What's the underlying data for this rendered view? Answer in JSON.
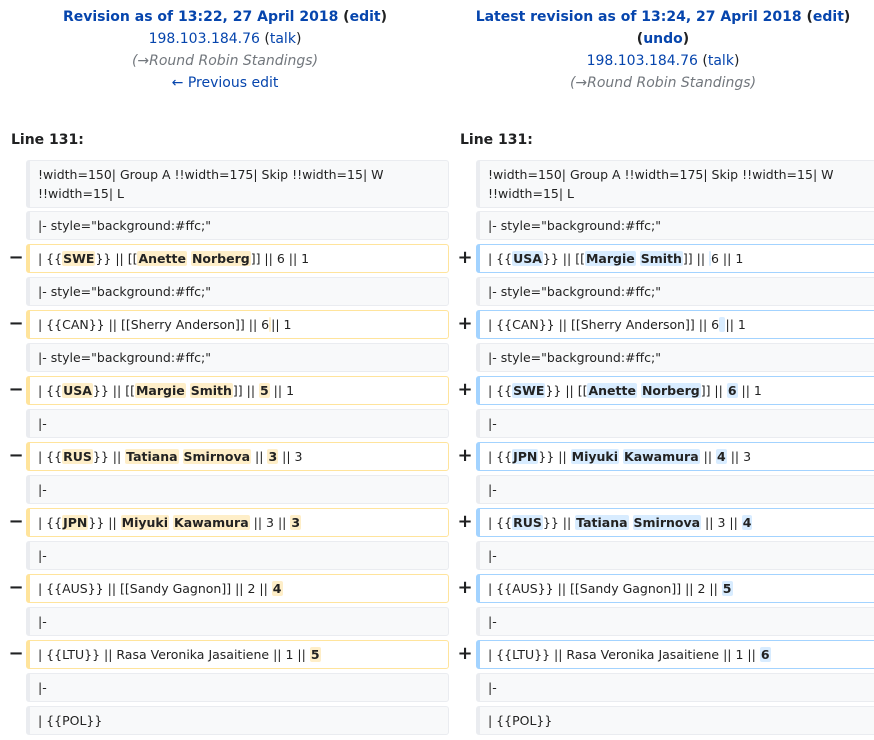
{
  "left_header": {
    "title": "Revision as of 13:22, 27 April 2018",
    "edit": "edit",
    "user": "198.103.184.76",
    "talk": "talk",
    "arrow": "→",
    "summary": "Round Robin Standings",
    "prev": "← Previous edit"
  },
  "right_header": {
    "title": "Latest revision as of 13:24, 27 April 2018",
    "edit": "edit",
    "undo": "undo",
    "user": "198.103.184.76",
    "talk": "talk",
    "arrow": "→",
    "summary": "Round Robin Standings"
  },
  "line_left": "Line 131:",
  "line_right": "Line 131:",
  "markers": {
    "minus": "−",
    "plus": "+"
  },
  "rows": [
    {
      "type": "context",
      "left": "!width=150| Group A !!width=175| Skip !!width=15| W !!width=15| L",
      "right": "!width=150| Group A !!width=175| Skip !!width=15| W !!width=15| L"
    },
    {
      "type": "context",
      "left": "|- style=\"background:#ffc;\"",
      "right": "|- style=\"background:#ffc;\""
    },
    {
      "type": "change",
      "left": [
        [
          "| {{",
          ""
        ],
        [
          "SWE",
          "b"
        ],
        [
          "}} || [[",
          ""
        ],
        [
          "Anette",
          "b"
        ],
        [
          " ",
          ""
        ],
        [
          "Norberg",
          "b"
        ],
        [
          "]] || 6 || 1",
          ""
        ]
      ],
      "right": [
        [
          "| {{",
          ""
        ],
        [
          "USA",
          "b"
        ],
        [
          "}} || [[",
          ""
        ],
        [
          "Margie",
          "b"
        ],
        [
          " ",
          ""
        ],
        [
          "Smith",
          "b"
        ],
        [
          "]] || ",
          ""
        ],
        [
          " ",
          "b"
        ],
        [
          "6 || 1",
          ""
        ]
      ]
    },
    {
      "type": "context",
      "left": "|- style=\"background:#ffc;\"",
      "right": "|- style=\"background:#ffc;\""
    },
    {
      "type": "change",
      "left": [
        [
          "| {{CAN}} || [[Sherry Anderson]] || 6",
          ""
        ],
        [
          "",
          "b"
        ],
        [
          "|| 1",
          ""
        ]
      ],
      "right": [
        [
          "| {{CAN}} || [[Sherry Anderson]] || 6",
          ""
        ],
        [
          " ",
          "b"
        ],
        [
          "|| 1",
          ""
        ]
      ]
    },
    {
      "type": "context",
      "left": "|- style=\"background:#ffc;\"",
      "right": "|- style=\"background:#ffc;\""
    },
    {
      "type": "change",
      "left": [
        [
          "| {{",
          ""
        ],
        [
          "USA",
          "b"
        ],
        [
          "}} || [[",
          ""
        ],
        [
          "Margie",
          "b"
        ],
        [
          " ",
          ""
        ],
        [
          "Smith",
          "b"
        ],
        [
          "]] || ",
          ""
        ],
        [
          " 5",
          "b"
        ],
        [
          " || 1",
          ""
        ]
      ],
      "right": [
        [
          "| {{",
          ""
        ],
        [
          "SWE",
          "b"
        ],
        [
          "}} || [[",
          ""
        ],
        [
          "Anette",
          "b"
        ],
        [
          " ",
          ""
        ],
        [
          "Norberg",
          "b"
        ],
        [
          "]] || ",
          ""
        ],
        [
          "6",
          "b"
        ],
        [
          " || 1",
          ""
        ]
      ]
    },
    {
      "type": "context",
      "left": "|-",
      "right": "|-"
    },
    {
      "type": "change",
      "left": [
        [
          "| {{",
          ""
        ],
        [
          "RUS",
          "b"
        ],
        [
          "}} || ",
          ""
        ],
        [
          "Tatiana",
          "b"
        ],
        [
          " ",
          ""
        ],
        [
          "Smirnova",
          "b"
        ],
        [
          " || ",
          ""
        ],
        [
          "3",
          "b"
        ],
        [
          " || 3",
          ""
        ]
      ],
      "right": [
        [
          "| {{",
          ""
        ],
        [
          "JPN",
          "b"
        ],
        [
          "}} || ",
          ""
        ],
        [
          "Miyuki",
          "b"
        ],
        [
          " ",
          ""
        ],
        [
          "Kawamura",
          "b"
        ],
        [
          " || ",
          ""
        ],
        [
          "4",
          "b"
        ],
        [
          " || 3",
          ""
        ]
      ]
    },
    {
      "type": "context",
      "left": "|-",
      "right": "|-"
    },
    {
      "type": "change",
      "left": [
        [
          "| {{",
          ""
        ],
        [
          "JPN",
          "b"
        ],
        [
          "}} || ",
          ""
        ],
        [
          "Miyuki",
          "b"
        ],
        [
          " ",
          ""
        ],
        [
          "Kawamura",
          "b"
        ],
        [
          " || 3 || ",
          ""
        ],
        [
          "3",
          "b"
        ]
      ],
      "right": [
        [
          "| {{",
          ""
        ],
        [
          "RUS",
          "b"
        ],
        [
          "}} || ",
          ""
        ],
        [
          "Tatiana",
          "b"
        ],
        [
          " ",
          ""
        ],
        [
          "Smirnova",
          "b"
        ],
        [
          " || 3 || ",
          ""
        ],
        [
          "4",
          "b"
        ]
      ]
    },
    {
      "type": "context",
      "left": "|-",
      "right": "|-"
    },
    {
      "type": "change",
      "left": [
        [
          "| {{AUS}} || [[Sandy Gagnon]] || 2 || ",
          ""
        ],
        [
          "4",
          "b"
        ]
      ],
      "right": [
        [
          "| {{AUS}} || [[Sandy Gagnon]] || 2 || ",
          ""
        ],
        [
          "5",
          "b"
        ]
      ]
    },
    {
      "type": "context",
      "left": "|-",
      "right": "|-"
    },
    {
      "type": "change",
      "left": [
        [
          "| {{LTU}} || Rasa Veronika Jasaitiene || 1 || ",
          ""
        ],
        [
          "5",
          "b"
        ]
      ],
      "right": [
        [
          "| {{LTU}} || Rasa Veronika Jasaitiene || 1 || ",
          ""
        ],
        [
          "6",
          "b"
        ]
      ]
    },
    {
      "type": "context",
      "left": "|-",
      "right": "|-"
    },
    {
      "type": "context",
      "left": "| {{POL}}",
      "right": "| {{POL}}"
    }
  ]
}
